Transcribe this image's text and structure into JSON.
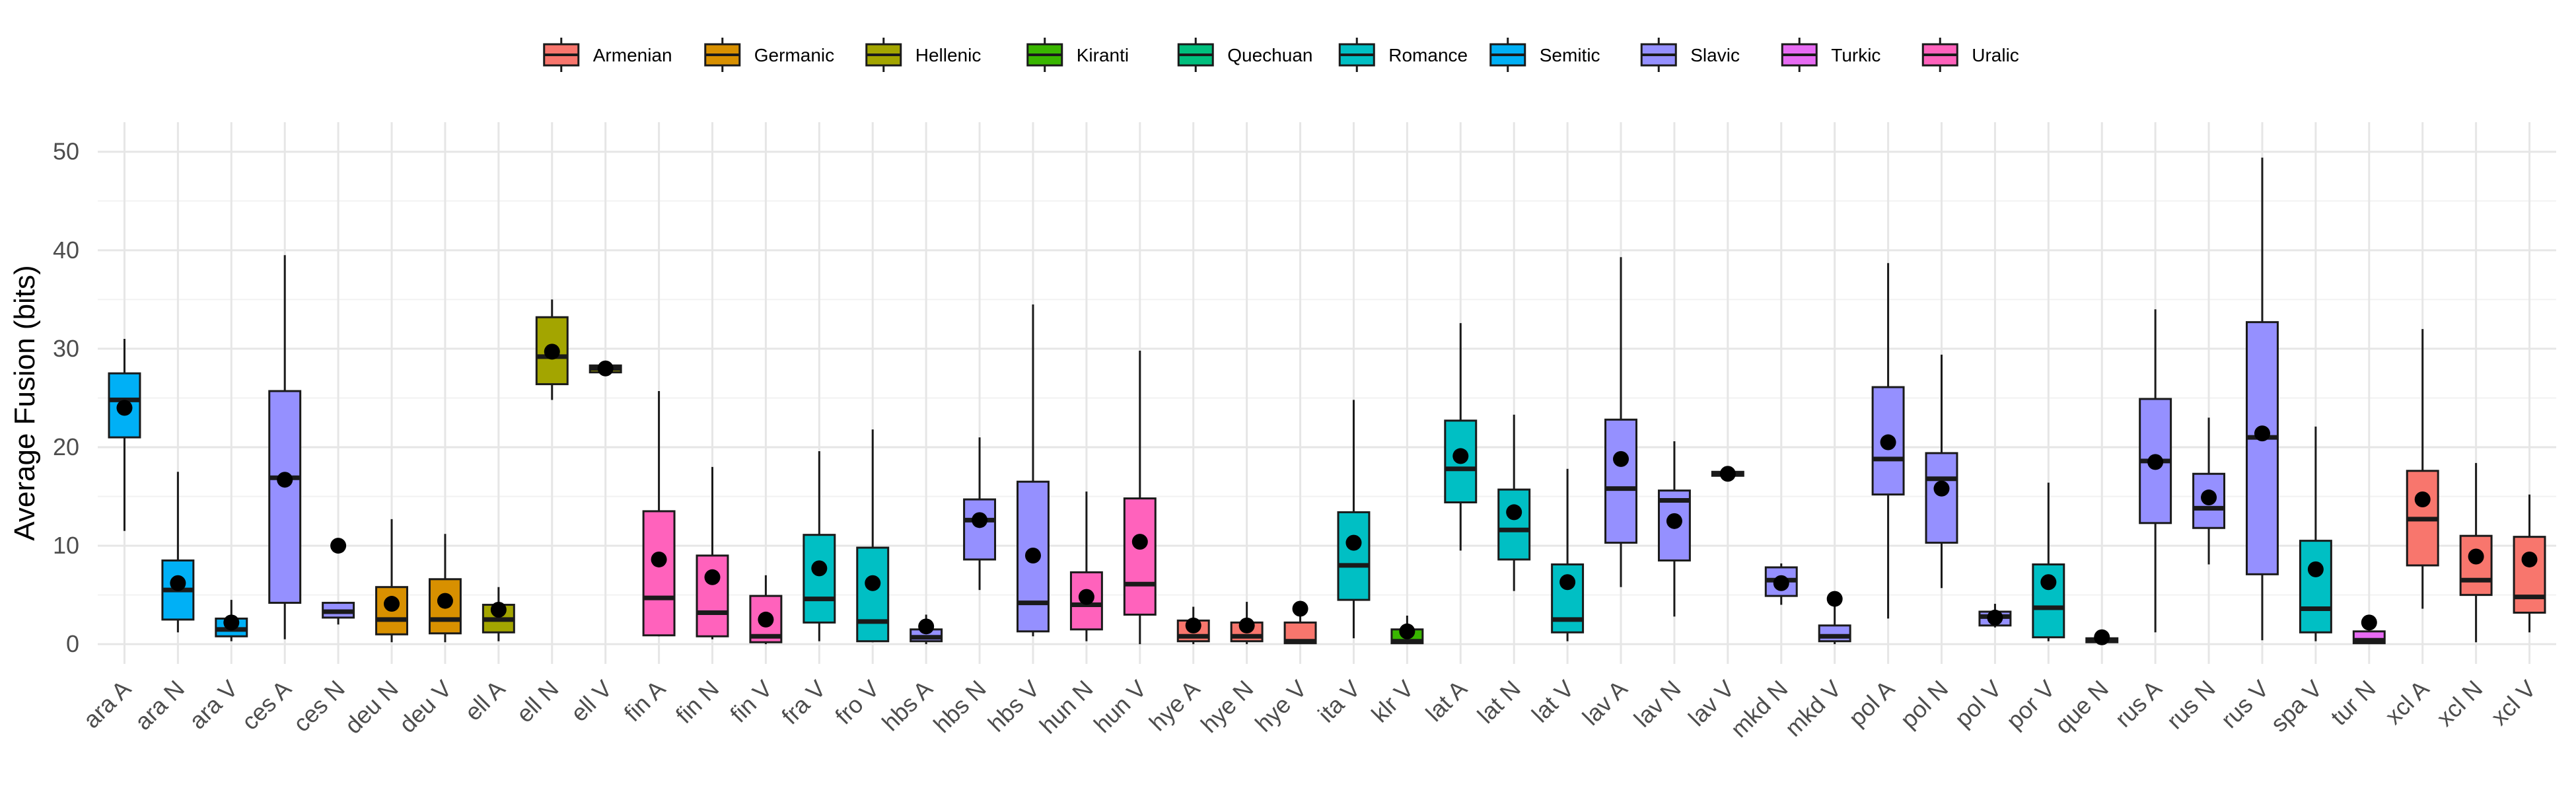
{
  "chart_data": {
    "type": "box",
    "ylabel": "Average Fusion (bits)",
    "ylim": [
      -2,
      53
    ],
    "yticks": [
      0,
      10,
      20,
      30,
      40,
      50
    ],
    "grid": true,
    "legend_position": "top",
    "legend": [
      {
        "name": "Armenian",
        "color": "#F8766D"
      },
      {
        "name": "Germanic",
        "color": "#D89000"
      },
      {
        "name": "Hellenic",
        "color": "#A3A500"
      },
      {
        "name": "Kiranti",
        "color": "#39B600"
      },
      {
        "name": "Quechuan",
        "color": "#00BF7D"
      },
      {
        "name": "Romance",
        "color": "#00BFC4"
      },
      {
        "name": "Semitic",
        "color": "#00B0F6"
      },
      {
        "name": "Slavic",
        "color": "#9590FF"
      },
      {
        "name": "Turkic",
        "color": "#E76BF3"
      },
      {
        "name": "Uralic",
        "color": "#FF62BC"
      }
    ],
    "boxes": [
      {
        "label": "ara A",
        "family": "Semitic",
        "min": 11.5,
        "q1": 21,
        "median": 24.8,
        "q3": 27.5,
        "max": 31,
        "mean": 24,
        "outliers": []
      },
      {
        "label": "ara N",
        "family": "Semitic",
        "min": 1.2,
        "q1": 2.5,
        "median": 5.5,
        "q3": 8.5,
        "max": 17.5,
        "mean": 6.2,
        "outliers": []
      },
      {
        "label": "ara V",
        "family": "Semitic",
        "min": 0.3,
        "q1": 0.8,
        "median": 1.5,
        "q3": 2.6,
        "max": 4.5,
        "mean": 2.2,
        "outliers": []
      },
      {
        "label": "ces A",
        "family": "Slavic",
        "min": 0.5,
        "q1": 4.2,
        "median": 16.9,
        "q3": 25.7,
        "max": 39.5,
        "mean": 16.7,
        "outliers": []
      },
      {
        "label": "ces N",
        "family": "Slavic",
        "min": 2,
        "q1": 2.7,
        "median": 3.3,
        "q3": 4.2,
        "max": 4.2,
        "mean": 10,
        "outliers": []
      },
      {
        "label": "deu N",
        "family": "Germanic",
        "min": 0.2,
        "q1": 1,
        "median": 2.5,
        "q3": 5.8,
        "max": 12.7,
        "mean": 4.1,
        "outliers": []
      },
      {
        "label": "deu V",
        "family": "Germanic",
        "min": 0.2,
        "q1": 1.1,
        "median": 2.5,
        "q3": 6.6,
        "max": 11.2,
        "mean": 4.4,
        "outliers": []
      },
      {
        "label": "ell A",
        "family": "Hellenic",
        "min": 0.3,
        "q1": 1.2,
        "median": 2.5,
        "q3": 4,
        "max": 5.8,
        "mean": 3.5,
        "outliers": []
      },
      {
        "label": "ell N",
        "family": "Hellenic",
        "min": 24.8,
        "q1": 26.4,
        "median": 29.2,
        "q3": 33.2,
        "max": 35,
        "mean": 29.7,
        "outliers": []
      },
      {
        "label": "ell V",
        "family": "Hellenic",
        "min": 27.4,
        "q1": 27.6,
        "median": 28,
        "q3": 28.3,
        "max": 28.5,
        "mean": 28,
        "outliers": []
      },
      {
        "label": "fin A",
        "family": "Uralic",
        "min": 0.8,
        "q1": 0.9,
        "median": 4.7,
        "q3": 13.5,
        "max": 25.7,
        "mean": 8.6,
        "outliers": []
      },
      {
        "label": "fin N",
        "family": "Uralic",
        "min": 0.5,
        "q1": 0.8,
        "median": 3.2,
        "q3": 9,
        "max": 18,
        "mean": 6.8,
        "outliers": []
      },
      {
        "label": "fin V",
        "family": "Uralic",
        "min": 0,
        "q1": 0.2,
        "median": 0.8,
        "q3": 4.9,
        "max": 7,
        "mean": 2.5,
        "outliers": []
      },
      {
        "label": "fra V",
        "family": "Romance",
        "min": 0.3,
        "q1": 2.2,
        "median": 4.6,
        "q3": 11.1,
        "max": 19.6,
        "mean": 7.7,
        "outliers": []
      },
      {
        "label": "fro V",
        "family": "Romance",
        "min": 0.2,
        "q1": 0.3,
        "median": 2.3,
        "q3": 9.8,
        "max": 21.8,
        "mean": 6.2,
        "outliers": []
      },
      {
        "label": "hbs A",
        "family": "Slavic",
        "min": 0,
        "q1": 0.3,
        "median": 0.7,
        "q3": 1.5,
        "max": 3,
        "mean": 1.8,
        "outliers": []
      },
      {
        "label": "hbs N",
        "family": "Slavic",
        "min": 5.5,
        "q1": 8.6,
        "median": 12.6,
        "q3": 14.7,
        "max": 21,
        "mean": 12.6,
        "outliers": []
      },
      {
        "label": "hbs V",
        "family": "Slavic",
        "min": 0.8,
        "q1": 1.3,
        "median": 4.2,
        "q3": 16.5,
        "max": 34.5,
        "mean": 9,
        "outliers": []
      },
      {
        "label": "hun N",
        "family": "Uralic",
        "min": 0.3,
        "q1": 1.5,
        "median": 4,
        "q3": 7.3,
        "max": 15.5,
        "mean": 4.8,
        "outliers": []
      },
      {
        "label": "hun V",
        "family": "Uralic",
        "min": 0,
        "q1": 3,
        "median": 6.1,
        "q3": 14.8,
        "max": 29.8,
        "mean": 10.4,
        "outliers": []
      },
      {
        "label": "hye A",
        "family": "Armenian",
        "min": 0,
        "q1": 0.3,
        "median": 0.8,
        "q3": 2.4,
        "max": 3.8,
        "mean": 1.9,
        "outliers": []
      },
      {
        "label": "hye N",
        "family": "Armenian",
        "min": 0,
        "q1": 0.3,
        "median": 0.8,
        "q3": 2.2,
        "max": 4.3,
        "mean": 1.9,
        "outliers": []
      },
      {
        "label": "hye V",
        "family": "Armenian",
        "min": 0,
        "q1": 0.1,
        "median": 0.3,
        "q3": 2.2,
        "max": 3.6,
        "mean": 3.6,
        "outliers": []
      },
      {
        "label": "ita V",
        "family": "Romance",
        "min": 0.6,
        "q1": 4.5,
        "median": 8,
        "q3": 13.4,
        "max": 24.8,
        "mean": 10.3,
        "outliers": []
      },
      {
        "label": "klr V",
        "family": "Kiranti",
        "min": 0,
        "q1": 0.1,
        "median": 0.3,
        "q3": 1.5,
        "max": 2.9,
        "mean": 1.3,
        "outliers": []
      },
      {
        "label": "lat A",
        "family": "Romance",
        "min": 9.5,
        "q1": 14.4,
        "median": 17.8,
        "q3": 22.7,
        "max": 32.6,
        "mean": 19.1,
        "outliers": []
      },
      {
        "label": "lat N",
        "family": "Romance",
        "min": 5.4,
        "q1": 8.6,
        "median": 11.6,
        "q3": 15.7,
        "max": 23.3,
        "mean": 13.4,
        "outliers": []
      },
      {
        "label": "lat V",
        "family": "Romance",
        "min": 0.3,
        "q1": 1.2,
        "median": 2.5,
        "q3": 8.1,
        "max": 17.8,
        "mean": 6.3,
        "outliers": []
      },
      {
        "label": "lav A",
        "family": "Slavic",
        "min": 5.8,
        "q1": 10.3,
        "median": 15.8,
        "q3": 22.8,
        "max": 39.3,
        "mean": 18.8,
        "outliers": []
      },
      {
        "label": "lav N",
        "family": "Slavic",
        "min": 2.8,
        "q1": 8.5,
        "median": 14.6,
        "q3": 15.6,
        "max": 20.6,
        "mean": 12.5,
        "outliers": []
      },
      {
        "label": "lav V",
        "family": "Slavic",
        "min": 17,
        "q1": 17.1,
        "median": 17.3,
        "q3": 17.5,
        "max": 17.6,
        "mean": 17.3,
        "outliers": []
      },
      {
        "label": "mkd N",
        "family": "Slavic",
        "min": 4,
        "q1": 4.9,
        "median": 6.5,
        "q3": 7.8,
        "max": 8.2,
        "mean": 6.2,
        "outliers": []
      },
      {
        "label": "mkd V",
        "family": "Slavic",
        "min": 0,
        "q1": 0.3,
        "median": 0.8,
        "q3": 1.9,
        "max": 3.9,
        "mean": 4.6,
        "outliers": []
      },
      {
        "label": "pol A",
        "family": "Slavic",
        "min": 2.6,
        "q1": 15.2,
        "median": 18.8,
        "q3": 26.1,
        "max": 38.7,
        "mean": 20.5,
        "outliers": []
      },
      {
        "label": "pol N",
        "family": "Slavic",
        "min": 5.7,
        "q1": 10.3,
        "median": 16.8,
        "q3": 19.4,
        "max": 29.4,
        "mean": 15.8,
        "outliers": []
      },
      {
        "label": "pol V",
        "family": "Slavic",
        "min": 1.7,
        "q1": 1.9,
        "median": 2.8,
        "q3": 3.3,
        "max": 4.1,
        "mean": 2.7,
        "outliers": []
      },
      {
        "label": "por V",
        "family": "Romance",
        "min": 0.3,
        "q1": 0.7,
        "median": 3.7,
        "q3": 8.1,
        "max": 16.4,
        "mean": 6.3,
        "outliers": []
      },
      {
        "label": "que N",
        "family": "Quechuan",
        "min": 0.1,
        "q1": 0.2,
        "median": 0.4,
        "q3": 0.6,
        "max": 0.8,
        "mean": 0.7,
        "outliers": []
      },
      {
        "label": "rus A",
        "family": "Slavic",
        "min": 1.2,
        "q1": 12.3,
        "median": 18.6,
        "q3": 24.9,
        "max": 34,
        "mean": 18.5,
        "outliers": []
      },
      {
        "label": "rus N",
        "family": "Slavic",
        "min": 8.1,
        "q1": 11.8,
        "median": 13.8,
        "q3": 17.3,
        "max": 23,
        "mean": 14.9,
        "outliers": []
      },
      {
        "label": "rus V",
        "family": "Slavic",
        "min": 0.4,
        "q1": 7.1,
        "median": 21,
        "q3": 32.7,
        "max": 49.4,
        "mean": 21.4,
        "outliers": []
      },
      {
        "label": "spa V",
        "family": "Romance",
        "min": 0.3,
        "q1": 1.2,
        "median": 3.6,
        "q3": 10.5,
        "max": 22.1,
        "mean": 7.6,
        "outliers": []
      },
      {
        "label": "tur N",
        "family": "Turkic",
        "min": 0,
        "q1": 0.1,
        "median": 0.4,
        "q3": 1.3,
        "max": 1.8,
        "mean": 2.2,
        "outliers": []
      },
      {
        "label": "xcl A",
        "family": "Armenian",
        "min": 3.6,
        "q1": 8,
        "median": 12.7,
        "q3": 17.6,
        "max": 32,
        "mean": 14.7,
        "outliers": []
      },
      {
        "label": "xcl N",
        "family": "Armenian",
        "min": 0.2,
        "q1": 5,
        "median": 6.5,
        "q3": 11,
        "max": 18.4,
        "mean": 8.9,
        "outliers": []
      },
      {
        "label": "xcl V",
        "family": "Armenian",
        "min": 1.2,
        "q1": 3.2,
        "median": 4.8,
        "q3": 10.9,
        "max": 15.2,
        "mean": 8.6,
        "outliers": []
      }
    ]
  }
}
